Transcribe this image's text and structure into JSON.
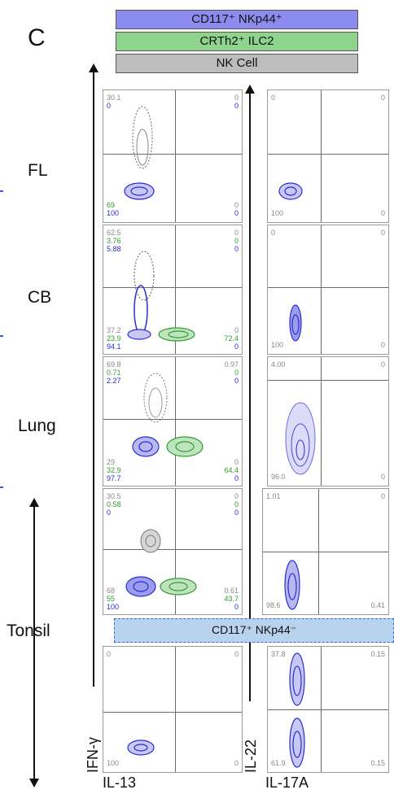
{
  "panel_letter": "C",
  "legend": {
    "nkp44_pos": "CD117⁺ NKp44⁺",
    "ilc2": "CRTh2⁺ ILC2",
    "nk": "NK Cell"
  },
  "tissues": [
    "FL",
    "CB",
    "Lung",
    "Tonsil"
  ],
  "colors": {
    "nk": "#888888",
    "ilc2": "#2e9e2e",
    "nkp44_pos": "#2b2bd0",
    "nkp44_neg_banner": "#b9d3ee"
  },
  "banner": "CD117⁺ NKp44⁻",
  "axes": {
    "left_y": "IFN-γ",
    "left_x": "IL-13",
    "right_y": "IL-22",
    "right_x": "IL-17A"
  },
  "plots_left": {
    "fl": {
      "tl": [
        "30.1",
        "0"
      ],
      "tr": [
        "0",
        "0"
      ],
      "bl": [
        "69",
        "100"
      ],
      "br": [
        "0",
        "0"
      ]
    },
    "cb": {
      "tl": [
        "62.5",
        "3.76",
        "5.88"
      ],
      "tr": [
        "0",
        "0",
        "0"
      ],
      "bl": [
        "37.2",
        "23.9",
        "94.1"
      ],
      "br": [
        "0",
        "72.4",
        "0"
      ]
    },
    "lung": {
      "tl": [
        "69.8",
        "0.71",
        "2.27"
      ],
      "tr": [
        "0.97",
        "0",
        "0"
      ],
      "bl": [
        "29",
        "32.9",
        "97.7"
      ],
      "br": [
        "0",
        "64.4",
        "0"
      ]
    },
    "tonsil_pos": {
      "tl": [
        "30.5",
        "0.58",
        "0"
      ],
      "tr": [
        "0",
        "0",
        "0"
      ],
      "bl": [
        "68",
        "55",
        "100"
      ],
      "br": [
        "0.61",
        "43.7",
        "0"
      ]
    },
    "tonsil_neg": {
      "tl": [
        "0"
      ],
      "tr": [
        "0"
      ],
      "bl": [
        "100"
      ],
      "br": [
        "0"
      ]
    }
  },
  "plots_right": {
    "fl": {
      "tl": "0",
      "tr": "0",
      "bl": "100",
      "br": "0"
    },
    "cb": {
      "tl": "0",
      "tr": "0",
      "bl": "100",
      "br": "0"
    },
    "lung": {
      "tl": "4.00",
      "tr": "0",
      "bl": "96.0",
      "br": "0"
    },
    "tonsil_pos": {
      "tl": "1.01",
      "tr": "0",
      "bl": "98.6",
      "br": "0.41"
    },
    "tonsil_neg": {
      "tl": "37.8",
      "tr": "0.15",
      "bl": "61.9",
      "br": "0.15"
    }
  }
}
